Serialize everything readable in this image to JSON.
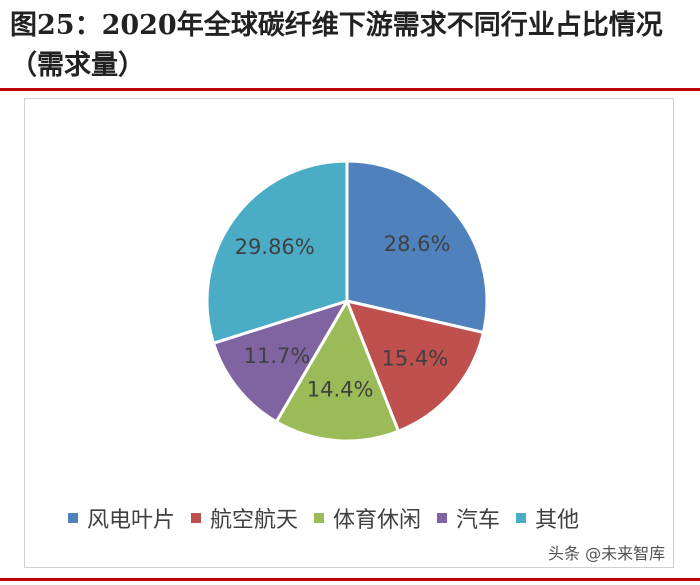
{
  "header": {
    "title": "图25：2020年全球碳纤维下游需求不同行业占比情况（需求量）"
  },
  "colors": {
    "accent_rule": "#c00000",
    "series": [
      "#4f81bd",
      "#c0504d",
      "#9bbb59",
      "#8064a2",
      "#4bacc6"
    ]
  },
  "chart_data": {
    "type": "pie",
    "categories": [
      "风电叶片",
      "航空航天",
      "体育休闲",
      "汽车",
      "其他"
    ],
    "values": [
      28.6,
      15.4,
      14.4,
      11.7,
      29.86
    ],
    "labels": [
      "28.6%",
      "15.4%",
      "14.4%",
      "11.7%",
      "29.86%"
    ],
    "legend_position": "bottom",
    "start_angle_deg": 0,
    "direction": "clockwise"
  },
  "legend": {
    "items": [
      {
        "label": "风电叶片"
      },
      {
        "label": "航空航天"
      },
      {
        "label": "体育休闲"
      },
      {
        "label": "汽车"
      },
      {
        "label": "其他"
      }
    ]
  },
  "watermark": {
    "text": "头条 @未来智库"
  }
}
